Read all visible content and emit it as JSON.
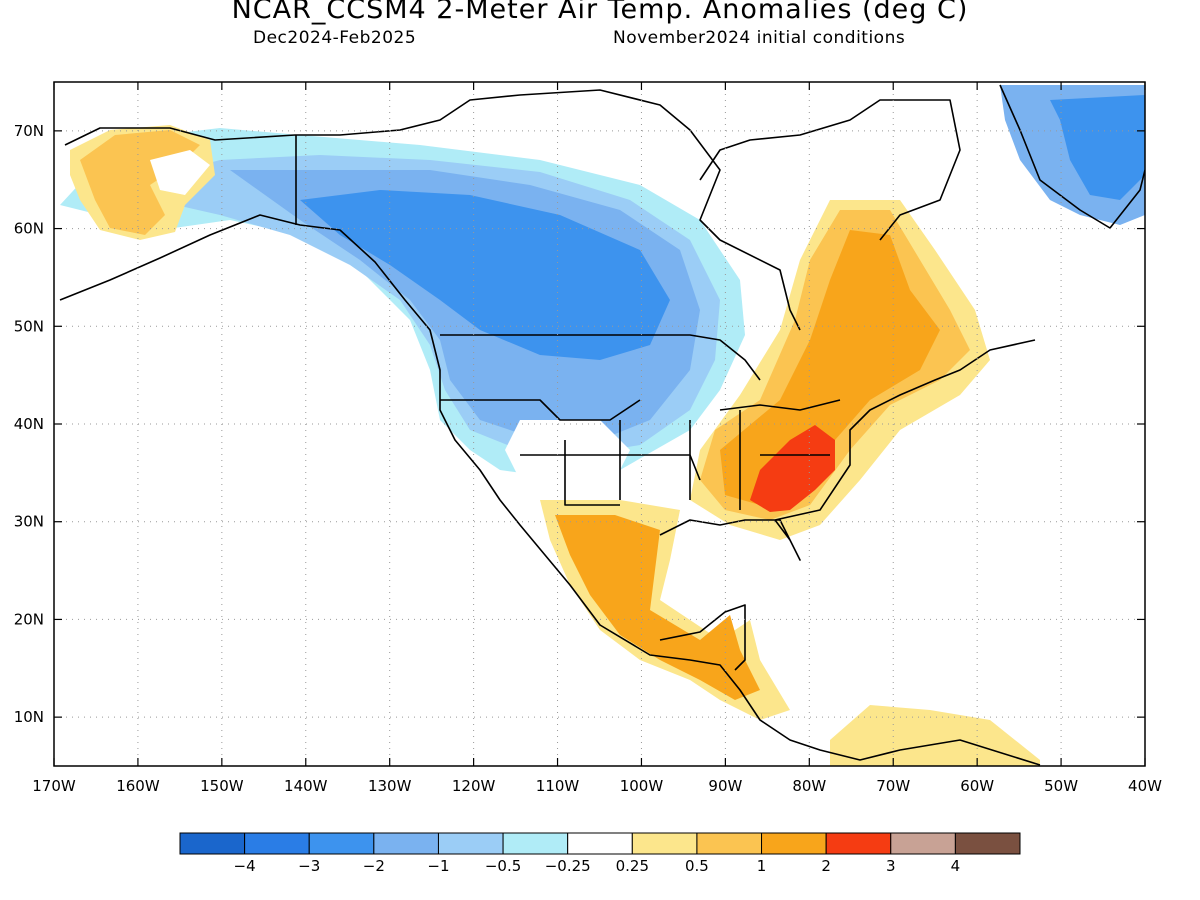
{
  "title": "NCAR_CCSM4 2-Meter Air Temp. Anomalies (deg C)",
  "period": "Dec2024-Feb2025",
  "initial_conditions": "November2024 initial conditions",
  "map": {
    "lon_range": [
      -170,
      -40
    ],
    "lat_range": [
      5,
      75
    ],
    "lon_ticks": [
      {
        "v": -170,
        "label": "170W"
      },
      {
        "v": -160,
        "label": "160W"
      },
      {
        "v": -150,
        "label": "150W"
      },
      {
        "v": -140,
        "label": "140W"
      },
      {
        "v": -130,
        "label": "130W"
      },
      {
        "v": -120,
        "label": "120W"
      },
      {
        "v": -110,
        "label": "110W"
      },
      {
        "v": -100,
        "label": "100W"
      },
      {
        "v": -90,
        "label": "90W"
      },
      {
        "v": -80,
        "label": "80W"
      },
      {
        "v": -70,
        "label": "70W"
      },
      {
        "v": -60,
        "label": "60W"
      },
      {
        "v": -50,
        "label": "50W"
      },
      {
        "v": -40,
        "label": "40W"
      }
    ],
    "lat_ticks": [
      {
        "v": 10,
        "label": "10N"
      },
      {
        "v": 20,
        "label": "20N"
      },
      {
        "v": 30,
        "label": "30N"
      },
      {
        "v": 40,
        "label": "40N"
      },
      {
        "v": 50,
        "label": "50N"
      },
      {
        "v": 60,
        "label": "60N"
      },
      {
        "v": 70,
        "label": "70N"
      }
    ]
  },
  "colorbar": {
    "colors": [
      "#1a66cc",
      "#2a7de6",
      "#3d93ee",
      "#7ab2f0",
      "#9bcdf6",
      "#b0ecf7",
      "#ffffff",
      "#fce68c",
      "#fbc451",
      "#f8a51b",
      "#f53c12",
      "#c8a295",
      "#7a5040"
    ],
    "labels": [
      "-4",
      "-3",
      "-2",
      "-1",
      "-0.5",
      "-0.25",
      "0.25",
      "0.5",
      "1",
      "2",
      "3",
      "4"
    ]
  }
}
